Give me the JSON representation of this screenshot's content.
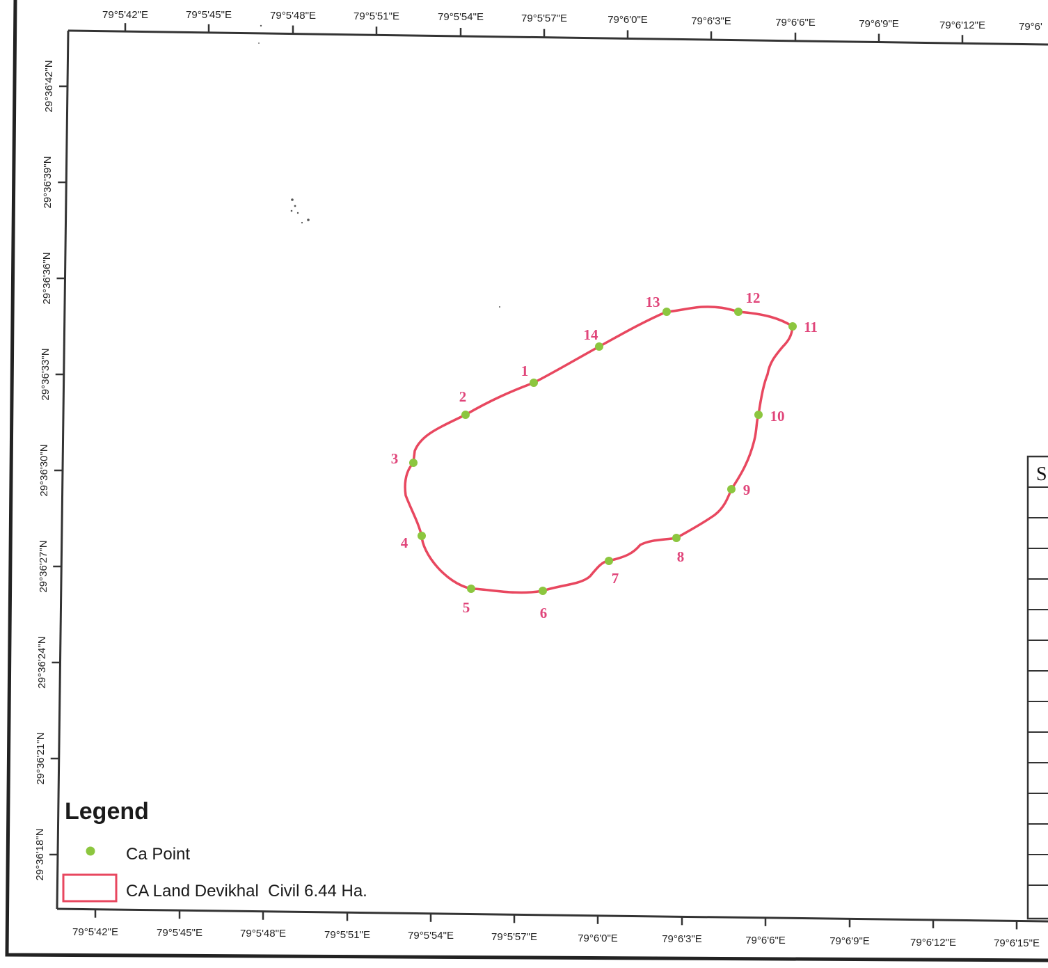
{
  "map": {
    "top_lon_labels": [
      "79°5'42\"E",
      "79°5'45\"E",
      "79°5'48\"E",
      "79°5'51\"E",
      "79°5'54\"E",
      "79°5'57\"E",
      "79°6'0\"E",
      "79°6'3\"E",
      "79°6'6\"E",
      "79°6'9\"E",
      "79°6'12\"E",
      "79°6'"
    ],
    "bottom_lon_labels": [
      "79°5'42\"E",
      "79°5'45\"E",
      "79°5'48\"E",
      "79°5'51\"E",
      "79°5'54\"E",
      "79°5'57\"E",
      "79°6'0\"E",
      "79°6'3\"E",
      "79°6'6\"E",
      "79°6'9\"E",
      "79°6'12\"E",
      "79°6'15\"E"
    ],
    "lat_labels": [
      "29°36'42\"N",
      "29°36'39\"N",
      "29°36'36\"N",
      "29°36'33\"N",
      "29°36'30\"N",
      "29°36'27\"N",
      "29°36'24\"N",
      "29°36'21\"N",
      "29°36'18\"N"
    ],
    "points": [
      {
        "label": "1"
      },
      {
        "label": "2"
      },
      {
        "label": "3"
      },
      {
        "label": "4"
      },
      {
        "label": "5"
      },
      {
        "label": "6"
      },
      {
        "label": "7"
      },
      {
        "label": "8"
      },
      {
        "label": "9"
      },
      {
        "label": "10"
      },
      {
        "label": "11"
      },
      {
        "label": "12"
      },
      {
        "label": "13"
      },
      {
        "label": "14"
      }
    ],
    "boundary_color": "#e8475f",
    "point_color": "#8cc63f",
    "label_color": "#e0457a"
  },
  "legend": {
    "title": "Legend",
    "items": [
      {
        "icon": "green-point-icon",
        "label": "Ca Point"
      },
      {
        "icon": "red-rectangle-icon",
        "label": "CA Land Devikhal  Civil 6.44 Ha."
      }
    ]
  },
  "side_panel": {
    "visible_letter": "S"
  }
}
